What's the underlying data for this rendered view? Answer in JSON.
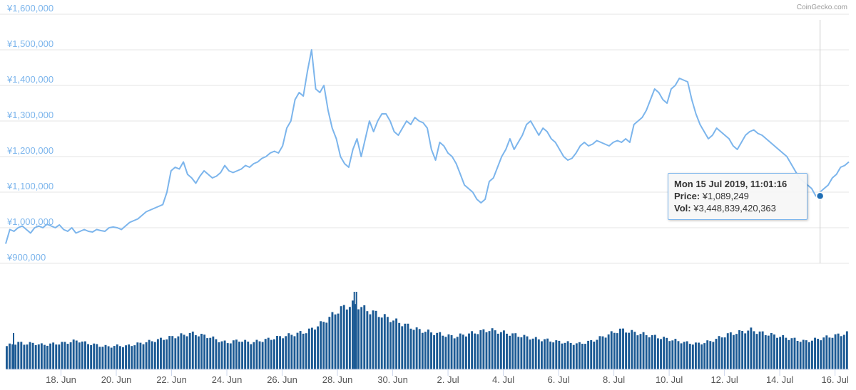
{
  "credit": "CoinGecko.com",
  "tooltip": {
    "timestamp": "Mon 15 Jul 2019, 11:01:16",
    "price_label": "Price:",
    "price_value": "¥1,089,249",
    "vol_label": "Vol:",
    "vol_value": "¥3,448,839,420,363"
  },
  "colors": {
    "line": "#7cb5ec",
    "volume": "#1c5a94",
    "grid": "#e6e6e6",
    "ylabel": "#7cb5ec",
    "marker": "#1f6eb5"
  },
  "chart_data": {
    "type": "line",
    "series": [
      {
        "x_start": "2019-06-16",
        "x_end": "2019-07-16 12:00",
        "values": [
          955000,
          995000,
          990000,
          1000000,
          1005000,
          995000,
          985000,
          1000000,
          1005000,
          1000000,
          1010000,
          1005000,
          1000000,
          1008000,
          995000,
          990000,
          1000000,
          985000,
          990000,
          995000,
          990000,
          988000,
          995000,
          992000,
          990000,
          1000000,
          1002000,
          1000000,
          995000,
          1005000,
          1015000,
          1020000,
          1025000,
          1035000,
          1045000,
          1050000,
          1055000,
          1060000,
          1065000,
          1100000,
          1160000,
          1170000,
          1165000,
          1185000,
          1150000,
          1140000,
          1125000,
          1145000,
          1160000,
          1150000,
          1140000,
          1145000,
          1155000,
          1175000,
          1160000,
          1155000,
          1160000,
          1165000,
          1175000,
          1170000,
          1180000,
          1185000,
          1195000,
          1200000,
          1210000,
          1215000,
          1210000,
          1230000,
          1280000,
          1300000,
          1360000,
          1380000,
          1370000,
          1440000,
          1500000,
          1390000,
          1380000,
          1400000,
          1330000,
          1280000,
          1250000,
          1200000,
          1180000,
          1170000,
          1220000,
          1250000,
          1200000,
          1250000,
          1300000,
          1270000,
          1300000,
          1320000,
          1320000,
          1300000,
          1270000,
          1260000,
          1280000,
          1300000,
          1290000,
          1310000,
          1300000,
          1295000,
          1280000,
          1220000,
          1190000,
          1240000,
          1230000,
          1210000,
          1200000,
          1180000,
          1150000,
          1120000,
          1110000,
          1100000,
          1080000,
          1070000,
          1080000,
          1130000,
          1140000,
          1170000,
          1200000,
          1220000,
          1250000,
          1220000,
          1240000,
          1260000,
          1290000,
          1300000,
          1280000,
          1260000,
          1280000,
          1270000,
          1250000,
          1240000,
          1220000,
          1200000,
          1190000,
          1195000,
          1210000,
          1230000,
          1240000,
          1230000,
          1235000,
          1245000,
          1240000,
          1235000,
          1230000,
          1240000,
          1245000,
          1240000,
          1250000,
          1240000,
          1290000,
          1300000,
          1310000,
          1330000,
          1360000,
          1390000,
          1380000,
          1360000,
          1350000,
          1390000,
          1400000,
          1420000,
          1415000,
          1410000,
          1360000,
          1320000,
          1290000,
          1270000,
          1250000,
          1260000,
          1280000,
          1270000,
          1260000,
          1250000,
          1230000,
          1220000,
          1240000,
          1260000,
          1270000,
          1275000,
          1265000,
          1260000,
          1250000,
          1240000,
          1230000,
          1220000,
          1210000,
          1200000,
          1180000,
          1160000,
          1140000,
          1130000,
          1120000,
          1110000,
          1089249,
          1100000,
          1110000,
          1120000,
          1140000,
          1150000,
          1170000,
          1175000,
          1185000
        ]
      },
      {
        "name": "Vol",
        "x_start": "2019-06-16",
        "x_end": "2019-07-16 12:00",
        "values": [
          1.0,
          1.1,
          1.15,
          1.1,
          1.12,
          1.1,
          1.05,
          1.08,
          1.1,
          1.12,
          1.15,
          1.2,
          1.25,
          1.15,
          1.1,
          1.05,
          1.0,
          0.98,
          1.0,
          1.02,
          1.0,
          1.05,
          1.1,
          1.15,
          1.2,
          1.25,
          1.3,
          1.35,
          1.4,
          1.45,
          1.5,
          1.55,
          1.5,
          1.45,
          1.4,
          1.3,
          1.2,
          1.15,
          1.2,
          1.25,
          1.2,
          1.15,
          1.2,
          1.25,
          1.3,
          1.35,
          1.4,
          1.45,
          1.5,
          1.55,
          1.6,
          1.7,
          1.85,
          2.0,
          2.2,
          2.4,
          2.6,
          2.7,
          2.8,
          2.75,
          2.6,
          2.5,
          2.4,
          2.3,
          2.2,
          2.1,
          2.0,
          1.9,
          1.8,
          1.7,
          1.65,
          1.6,
          1.55,
          1.5,
          1.45,
          1.4,
          1.45,
          1.5,
          1.55,
          1.6,
          1.65,
          1.7,
          1.65,
          1.6,
          1.55,
          1.5,
          1.45,
          1.4,
          1.35,
          1.3,
          1.28,
          1.25,
          1.2,
          1.18,
          1.15,
          1.12,
          1.1,
          1.15,
          1.2,
          1.3,
          1.4,
          1.5,
          1.6,
          1.7,
          1.65,
          1.6,
          1.55,
          1.5,
          1.45,
          1.4,
          1.35,
          1.3,
          1.25,
          1.2,
          1.15,
          1.12,
          1.1,
          1.15,
          1.2,
          1.3,
          1.4,
          1.5,
          1.55,
          1.6,
          1.65,
          1.7,
          1.6,
          1.55,
          1.5,
          1.45,
          1.4,
          1.35,
          1.3,
          1.25,
          1.2,
          1.25,
          1.3,
          1.35,
          1.4,
          1.45,
          1.5,
          1.55
        ],
        "volume_unit": "relative"
      }
    ],
    "y_ticks": [
      "¥900,000",
      "¥1,000,000",
      "¥1,100,000",
      "¥1,200,000",
      "¥1,300,000",
      "¥1,400,000",
      "¥1,500,000",
      "¥1,600,000"
    ],
    "ylim": [
      900000,
      1600000
    ],
    "x_ticks": [
      "18. Jun",
      "20. Jun",
      "22. Jun",
      "24. Jun",
      "26. Jun",
      "28. Jun",
      "30. Jun",
      "2. Jul",
      "4. Jul",
      "6. Jul",
      "8. Jul",
      "10. Jul",
      "12. Jul",
      "14. Jul",
      "16. Jul"
    ],
    "highlight": {
      "date": "2019-07-15 11:01:16",
      "value": 1089249
    },
    "grid": true,
    "legend": "none",
    "spike_volume_date": "2019-06-28"
  }
}
